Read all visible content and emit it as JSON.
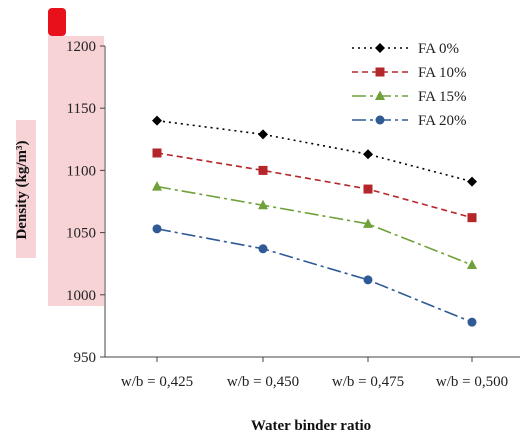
{
  "chart_data": {
    "type": "line",
    "xlabel": "Water binder ratio",
    "ylabel": "Density (kg/m³)",
    "categories": [
      "w/b = 0,425",
      "w/b = 0,450",
      "w/b = 0,475",
      "w/b = 0,500"
    ],
    "ylim": [
      950,
      1200
    ],
    "yticks": [
      950,
      1000,
      1050,
      1100,
      1150,
      1200
    ],
    "grid": false,
    "legend_position": "top-right",
    "series": [
      {
        "name": "FA 0%",
        "values": [
          1140,
          1129,
          1113,
          1091
        ],
        "color": "#000000",
        "dash": "dotted",
        "marker": "diamond"
      },
      {
        "name": "FA 10%",
        "values": [
          1114,
          1100,
          1085,
          1062
        ],
        "color": "#b5262b",
        "dash": "dashed",
        "marker": "square"
      },
      {
        "name": "FA 15%",
        "values": [
          1087,
          1072,
          1057,
          1024
        ],
        "color": "#6fa03a",
        "dash": "longdash-dot",
        "marker": "triangle"
      },
      {
        "name": "FA 20%",
        "values": [
          1053,
          1037,
          1012,
          978
        ],
        "color": "#2f5a96",
        "dash": "longdash-dot",
        "marker": "circle"
      }
    ]
  }
}
